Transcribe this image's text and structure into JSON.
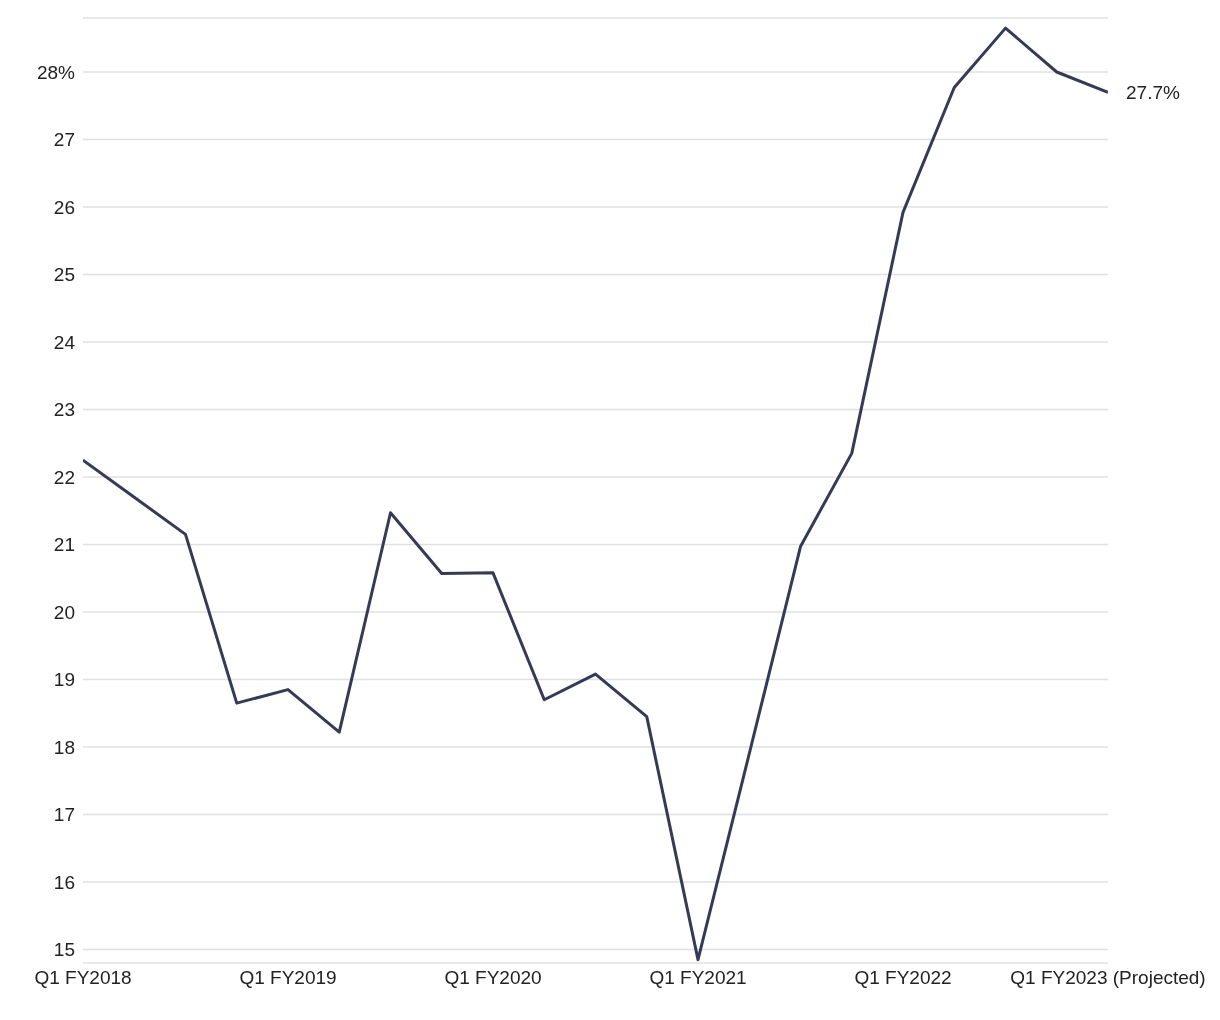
{
  "chart_data": {
    "type": "line",
    "categories": [
      "Q1 FY2018",
      null,
      null,
      null,
      "Q1 FY2019",
      null,
      null,
      null,
      "Q1 FY2020",
      null,
      null,
      null,
      "Q1 FY2021",
      null,
      null,
      null,
      "Q1 FY2022",
      null,
      null,
      null,
      "Q1 FY2023 (Projected)"
    ],
    "series": [
      {
        "color": "#363a55",
        "values": [
          22.25,
          21.7,
          21.15,
          18.65,
          18.85,
          18.22,
          21.47,
          20.57,
          20.58,
          18.7,
          19.08,
          18.45,
          14.85,
          17.9,
          20.97,
          22.35,
          25.92,
          27.77,
          28.65,
          28.0,
          27.7
        ]
      }
    ],
    "ylim": [
      14.8,
      28.8
    ],
    "yticks": [
      15,
      16,
      17,
      18,
      19,
      20,
      21,
      22,
      23,
      24,
      25,
      26,
      27,
      {
        "value": 28,
        "label": "28%"
      }
    ],
    "grid": "y",
    "marker": "none",
    "line_style": "solid",
    "annotations": [
      {
        "text": "27.7%",
        "x": "Q1 FY2023 (Projected)",
        "y": 27.7
      }
    ]
  }
}
